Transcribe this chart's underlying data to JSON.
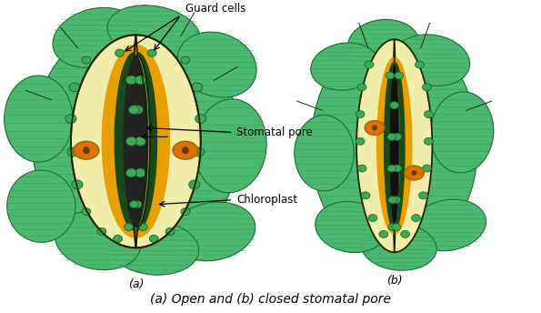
{
  "bg_color": "#ffffff",
  "epi_color": "#4db870",
  "epi_stripe": "#2d9e55",
  "epi_edge": "#1a6b30",
  "guard_fill": "#f0eeaa",
  "guard_outline": "#e8c020",
  "guard_outline2": "#000000",
  "dark_inner": "#1a4a1a",
  "orange_wall": "#e8a000",
  "chloro_fill": "#e07000",
  "chloro_dot": "#6b3a00",
  "vacuole_fill": "#3aaa55",
  "vacuole_edge": "#1a5a25",
  "pore_dark": "#111111",
  "ann_guard": "Guard cells",
  "ann_pore": "Stomatal pore",
  "ann_chloro": "Chloroplast",
  "label_a": "(a)",
  "label_b": "(b)",
  "caption": "(a) Open and (b) closed stomatal pore",
  "fs_caption": 10,
  "fs_label": 9,
  "fs_ann": 8.5
}
